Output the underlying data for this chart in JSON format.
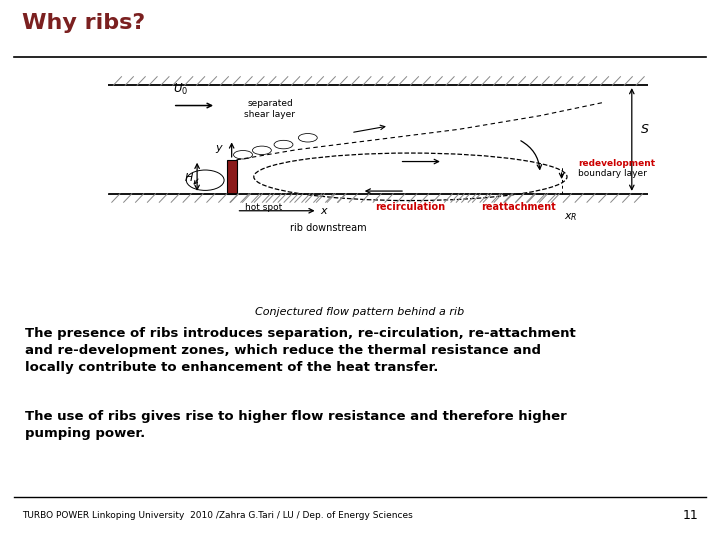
{
  "title": "Why ribs?",
  "title_color": "#7B2020",
  "title_fontsize": 16,
  "footer_text": "TURBO POWER Linkoping University  2010 /Zahra G.Tari / LU / Dep. of Energy Sciences",
  "footer_page": "11",
  "para1": "The presence of ribs introduces separation, re-circulation, re-attachment\nand re-development zones, which reduce the thermal resistance and\nlocally contribute to enhancement of the heat transfer.",
  "para2": "The use of ribs gives rise to higher flow resistance and therefore higher\npumping power.",
  "caption": "Conjectured flow pattern behind a rib",
  "label_separated": "separated\nshear layer",
  "label_hotspot": "hot spot",
  "label_recirculation": "recirculation",
  "label_reattachment": "reattachment",
  "label_redevelopment": "redevelopment",
  "label_boundarylayer": "boundary layer",
  "label_ribdownstream": "rib downstream",
  "label_U0": "$U_0$",
  "label_H": "$H$",
  "label_S": "$S$",
  "label_y": "$y$",
  "label_x": "$x$",
  "label_xR": "$x_R$",
  "bg_color": "#FFFFFF",
  "rib_color": "#8B1A1A",
  "hatch_color": "#888888",
  "red_label_color": "#CC0000",
  "black_color": "#000000"
}
